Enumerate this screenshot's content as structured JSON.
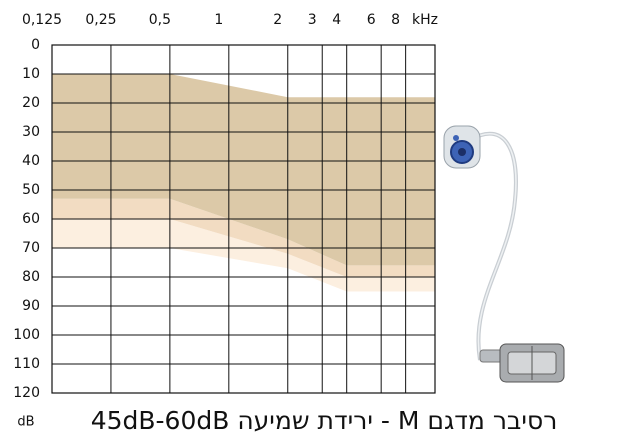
{
  "chart_data": {
    "type": "band",
    "title": "רסיבר מדגם M - ירידת שמיעה 45dB-60dB",
    "x_label": "kHz",
    "y_label": "dB",
    "x_scale": "log",
    "y_inverted": true,
    "grid": true,
    "xlim": [
      0.125,
      11.3
    ],
    "ylim": [
      0,
      120
    ],
    "xticks": [
      {
        "value": 0.125,
        "label": "0,125"
      },
      {
        "value": 0.25,
        "label": "0,25"
      },
      {
        "value": 0.5,
        "label": "0,5"
      },
      1,
      2,
      3,
      4,
      6,
      8
    ],
    "yticks": [
      0,
      10,
      20,
      30,
      40,
      50,
      60,
      70,
      80,
      90,
      100,
      110,
      120
    ],
    "x": [
      0.125,
      0.5,
      2,
      4,
      11.3
    ],
    "series": [
      {
        "color": "#fcefe0",
        "top": [
          60,
          60,
          72,
          80,
          80
        ],
        "bottom": [
          70,
          70,
          77,
          85,
          85
        ]
      },
      {
        "color": "#f2dcc2",
        "top": [
          53,
          53,
          67,
          76,
          76
        ],
        "bottom": [
          60,
          60,
          72,
          80,
          80
        ]
      },
      {
        "color": "#dcc9a8",
        "top": [
          10,
          10,
          18,
          18,
          18
        ],
        "bottom": [
          53,
          53,
          67,
          76,
          76
        ]
      }
    ]
  }
}
